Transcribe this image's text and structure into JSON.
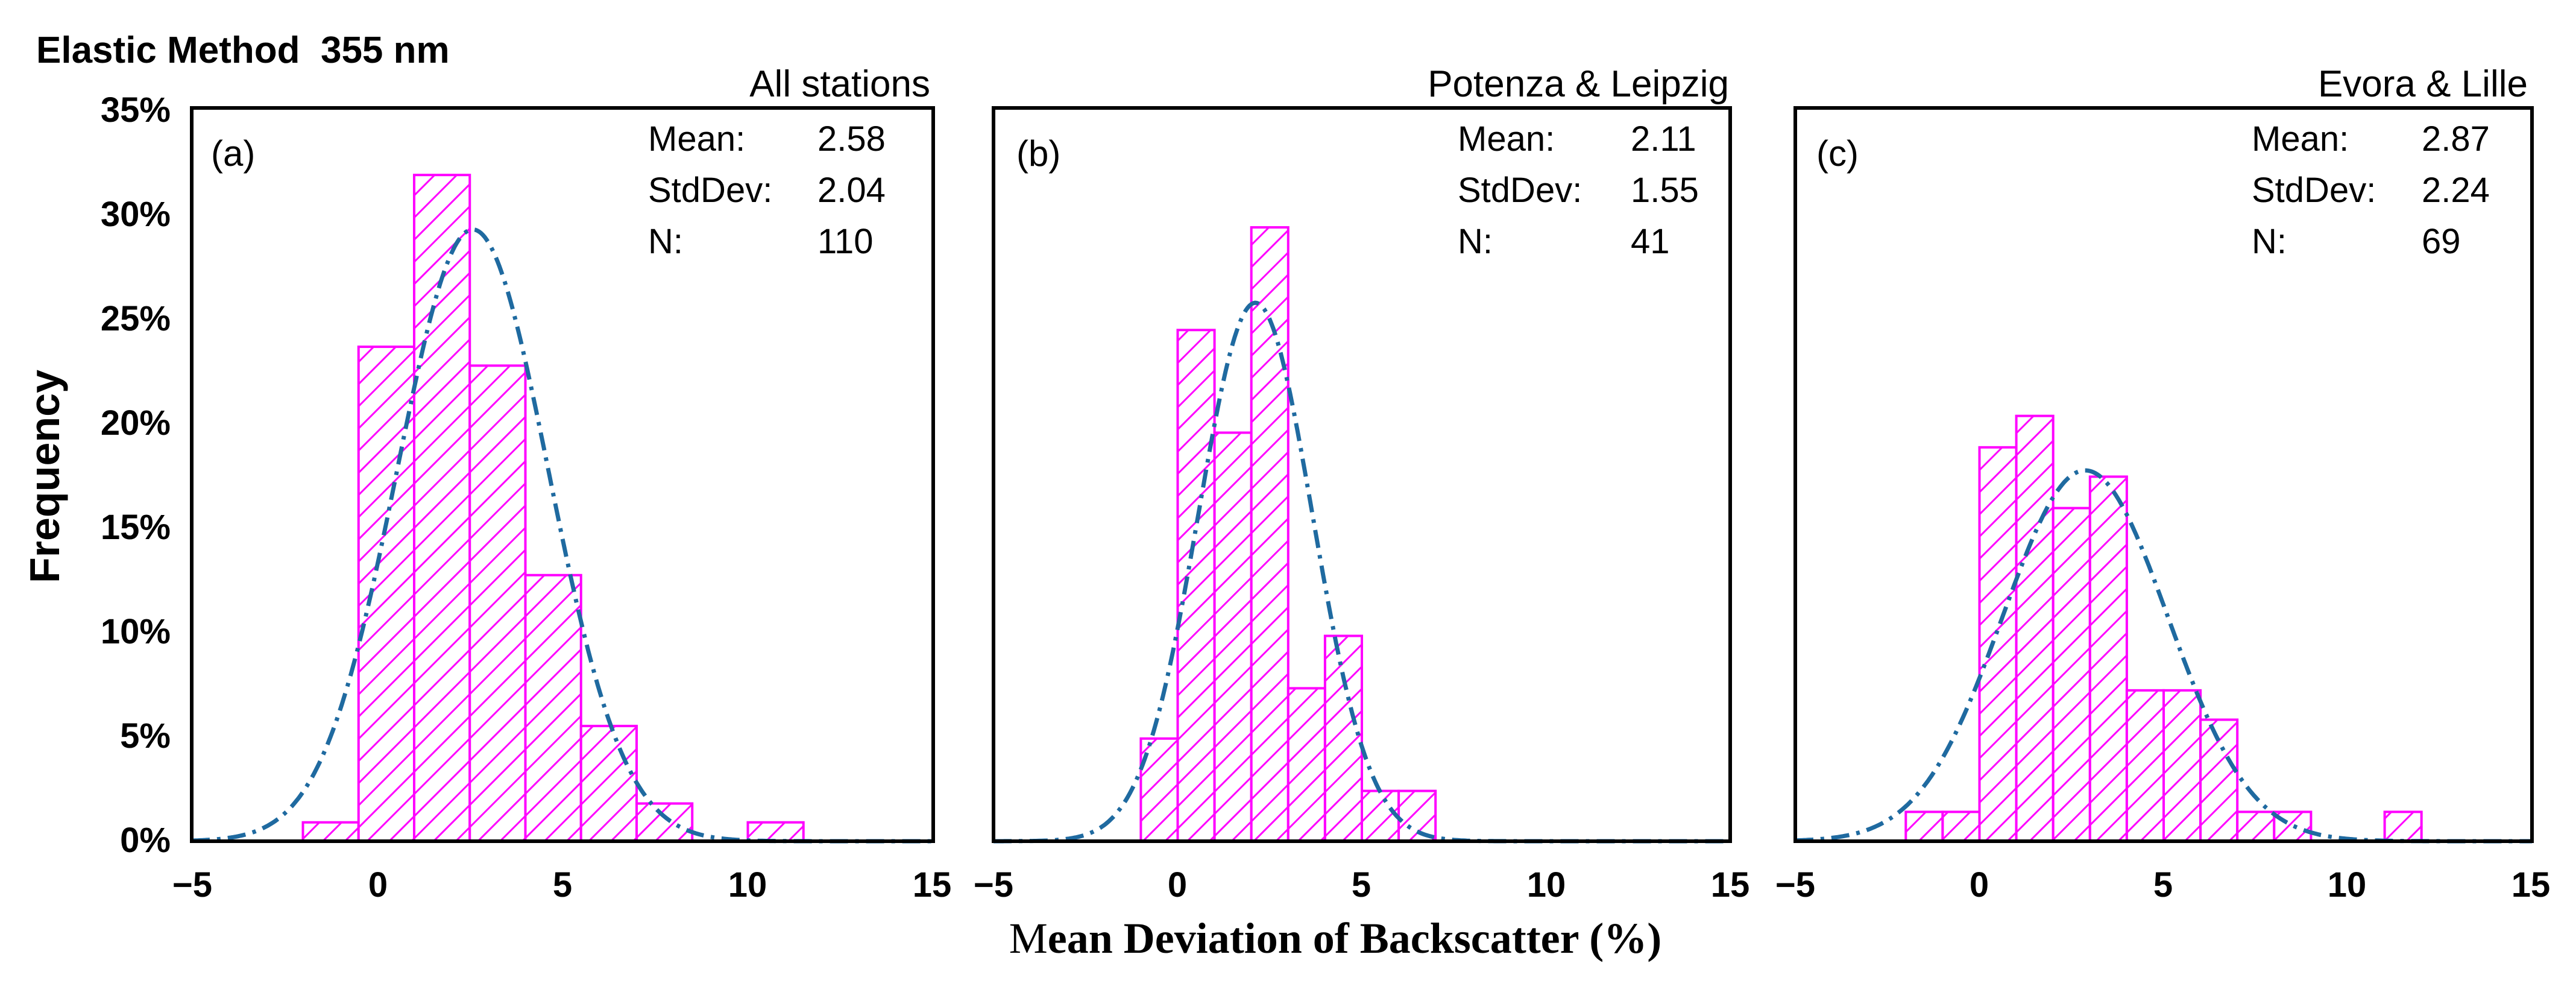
{
  "figure_title": "Elastic Method  355 nm",
  "ylabel": "Frequency",
  "xlabel_first": "M",
  "xlabel_rest": "ean Deviation of Backscatter (%)",
  "colors": {
    "bar": "#ff00ff",
    "fit": "#1f6aa0",
    "axis": "#000000"
  },
  "chart_data": [
    {
      "type": "bar",
      "panel_label": "(a)",
      "title": "All stations",
      "stats": [
        {
          "label": "Mean:",
          "value": "2.58"
        },
        {
          "label": "StdDev:",
          "value": "2.04"
        },
        {
          "label": "N:",
          "value": "110"
        }
      ],
      "mean": 2.58,
      "stddev": 2.04,
      "n": 110,
      "bin_width": 1.5,
      "bin_starts": [
        -2.0,
        -0.5,
        1.0,
        2.5,
        4.0,
        5.5,
        7.0,
        8.5,
        10.0
      ],
      "values": [
        0.9,
        23.6,
        31.8,
        22.7,
        12.7,
        5.5,
        1.8,
        0.0,
        0.9
      ],
      "xlim": [
        -5,
        15
      ],
      "ylim": [
        0,
        35
      ],
      "xticks": [
        -5,
        0,
        5,
        10,
        15
      ],
      "xtick_labels": [
        "−5",
        "0",
        "5",
        "10",
        "15"
      ],
      "yticks": [
        0,
        5,
        10,
        15,
        20,
        25,
        30,
        35
      ],
      "ytick_labels": [
        "0%",
        "5%",
        "10%",
        "15%",
        "20%",
        "25%",
        "30%",
        "35%"
      ],
      "fit": {
        "type": "normal",
        "mu": 2.58,
        "sigma": 2.04,
        "peak": 29.2
      }
    },
    {
      "type": "bar",
      "panel_label": "(b)",
      "title": "Potenza & Leipzig",
      "stats": [
        {
          "label": "Mean:",
          "value": "2.11"
        },
        {
          "label": "StdDev:",
          "value": "1.55"
        },
        {
          "label": "N:",
          "value": "41"
        }
      ],
      "mean": 2.11,
      "stddev": 1.55,
      "n": 41,
      "bin_width": 1.0,
      "bin_starts": [
        -1.0,
        0.0,
        1.0,
        2.0,
        3.0,
        4.0,
        5.0,
        6.0
      ],
      "values": [
        4.9,
        24.4,
        19.5,
        29.3,
        7.3,
        9.8,
        2.4,
        2.4
      ],
      "xlim": [
        -5,
        15
      ],
      "ylim": [
        0,
        35
      ],
      "xticks": [
        -5,
        0,
        5,
        10,
        15
      ],
      "xtick_labels": [
        "−5",
        "0",
        "5",
        "10",
        "15"
      ],
      "fit": {
        "type": "normal",
        "mu": 2.11,
        "sigma": 1.55,
        "peak": 25.7
      }
    },
    {
      "type": "bar",
      "panel_label": "(c)",
      "title": "Evora & Lille",
      "stats": [
        {
          "label": "Mean:",
          "value": "2.87"
        },
        {
          "label": "StdDev:",
          "value": "2.24"
        },
        {
          "label": "N:",
          "value": "69"
        }
      ],
      "mean": 2.87,
      "stddev": 2.24,
      "n": 69,
      "bin_width": 1.0,
      "bin_starts": [
        -2.0,
        -1.0,
        0.0,
        1.0,
        2.0,
        3.0,
        4.0,
        5.0,
        6.0,
        7.0,
        8.0,
        9.0,
        10.0,
        11.0
      ],
      "values": [
        1.4,
        1.4,
        18.8,
        20.3,
        15.9,
        17.4,
        7.2,
        7.2,
        5.8,
        1.4,
        1.4,
        0.0,
        0.0,
        1.4
      ],
      "xlim": [
        -5,
        15
      ],
      "ylim": [
        0,
        35
      ],
      "xticks": [
        -5,
        0,
        5,
        10,
        15
      ],
      "xtick_labels": [
        "−5",
        "0",
        "5",
        "10",
        "15"
      ],
      "fit": {
        "type": "normal",
        "mu": 2.87,
        "sigma": 2.24,
        "peak": 17.7
      }
    }
  ]
}
